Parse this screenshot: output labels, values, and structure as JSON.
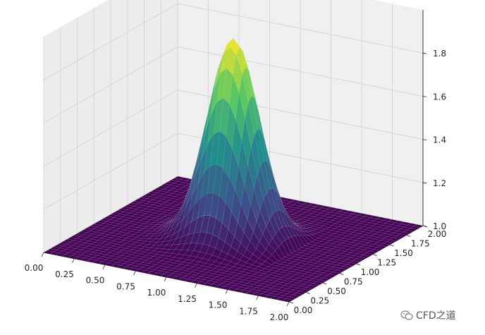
{
  "chart_data": {
    "type": "surface3d",
    "title": "",
    "xlabel": "",
    "ylabel": "",
    "zlabel": "",
    "colormap": "viridis",
    "x_ticks": [
      "0.00",
      "0.25",
      "0.50",
      "0.75",
      "1.00",
      "1.25",
      "1.50",
      "1.75",
      "2.00"
    ],
    "y_ticks": [
      "0.00",
      "0.25",
      "0.50",
      "0.75",
      "1.00",
      "1.25",
      "1.50",
      "1.75",
      "2.00"
    ],
    "z_ticks": [
      "1.0",
      "1.2",
      "1.4",
      "1.6",
      "1.8"
    ],
    "xlim": [
      0,
      2
    ],
    "ylim": [
      0,
      2
    ],
    "zlim": [
      1,
      2
    ],
    "surface": {
      "base_value": 1.0,
      "peak_value": 1.93,
      "peak_center": [
        1.0,
        1.0
      ],
      "peak_spread": 0.19,
      "region_x": [
        0.5,
        1.0
      ],
      "region_y": [
        0.5,
        1.0
      ],
      "grid_n": 41
    },
    "colors": {
      "low": "#440154",
      "high": "#fde725",
      "pane": "#f2f2f2",
      "grid": "#d4d4d4"
    }
  },
  "watermark": {
    "text": "CFD之道"
  }
}
